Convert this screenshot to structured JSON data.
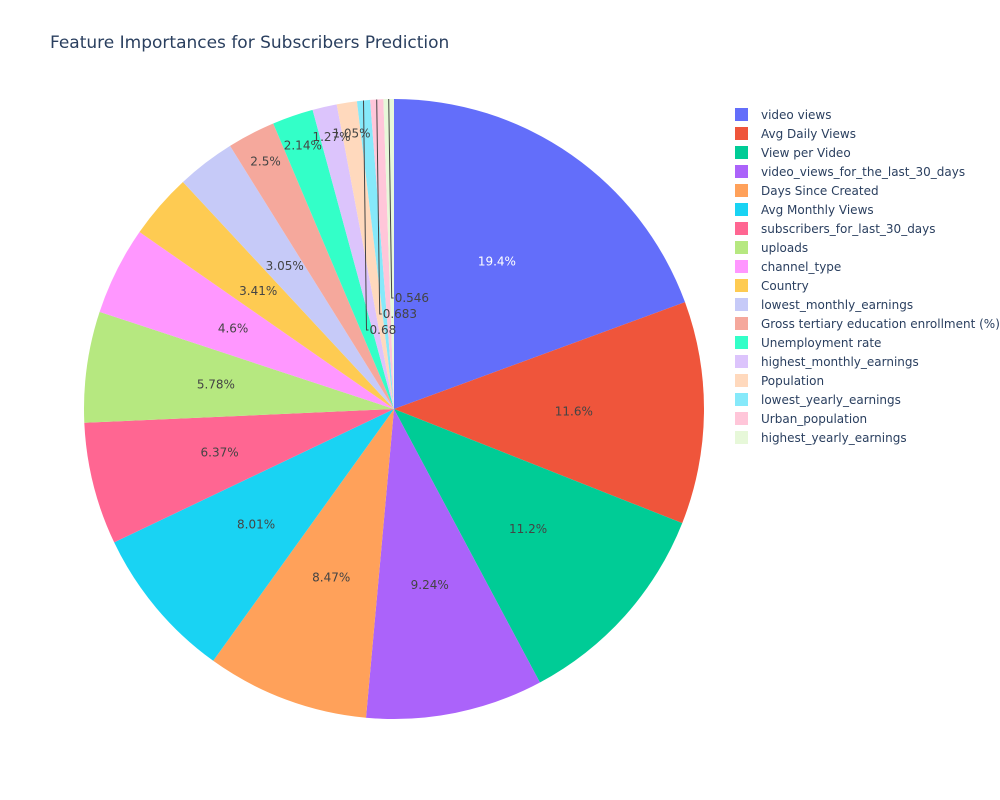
{
  "chart_data": {
    "type": "pie",
    "title": "Feature Importances for Subscribers Prediction",
    "legend_position": "right",
    "labels": [
      "video views",
      "Avg Daily Views",
      "View per Video",
      "video_views_for_the_last_30_days",
      "Days Since Created",
      "Avg Monthly Views",
      "subscribers_for_last_30_days",
      "uploads",
      "channel_type",
      "Country",
      "lowest_monthly_earnings",
      "Gross tertiary education enrollment (%)",
      "Unemployment rate",
      "highest_monthly_earnings",
      "Population",
      "lowest_yearly_earnings",
      "Urban_population",
      "highest_yearly_earnings"
    ],
    "values": [
      19.4,
      11.6,
      11.2,
      9.24,
      8.47,
      8.01,
      6.37,
      5.78,
      4.6,
      3.41,
      3.05,
      2.5,
      2.14,
      1.27,
      1.05,
      0.68,
      0.683,
      0.546
    ],
    "display_labels": [
      "19.4%",
      "11.6%",
      "11.2%",
      "9.24%",
      "8.47%",
      "8.01%",
      "6.37%",
      "5.78%",
      "4.6%",
      "3.41%",
      "3.05%",
      "2.5%",
      "2.14%",
      "1.27%",
      "1.05%",
      "0.68",
      "0.683",
      "0.546"
    ],
    "colors": [
      "#636efa",
      "#EF553B",
      "#00cc96",
      "#ab63fa",
      "#FFA15A",
      "#19d3f3",
      "#FF6692",
      "#B6E880",
      "#FF97FF",
      "#FECB52",
      "#c6caf8",
      "#f5a89c",
      "#33ffc8",
      "#dcc4fc",
      "#ffd9bd",
      "#86e9fa",
      "#ffc6d9",
      "#e7f8d9"
    ],
    "label_colors": [
      "#ffffff",
      "#444444",
      "#444444",
      "#444444",
      "#444444",
      "#444444",
      "#444444",
      "#444444",
      "#444444",
      "#444444",
      "#444444",
      "#444444",
      "#444444",
      "#444444",
      "#444444",
      "#444444",
      "#444444",
      "#444444"
    ]
  }
}
